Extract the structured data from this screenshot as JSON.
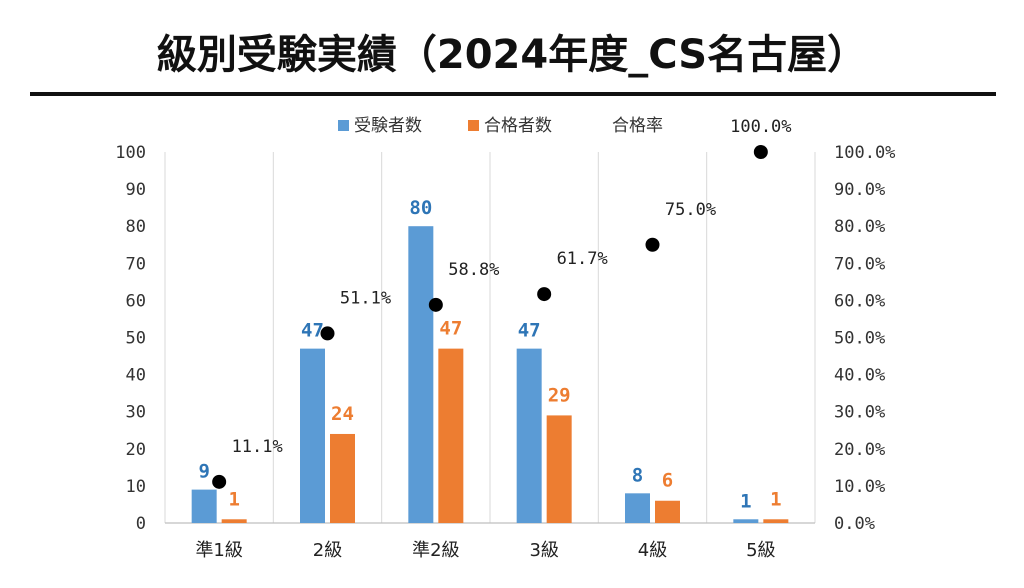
{
  "chart_data": {
    "type": "bar",
    "title": "級別受験実績（2024年度_CS名古屋）",
    "categories": [
      "準1級",
      "2級",
      "準2級",
      "3級",
      "4級",
      "5級"
    ],
    "series": [
      {
        "name": "受験者数",
        "kind": "bar",
        "axis": "left",
        "color": "#5b9bd5",
        "label_color": "#2e75b6",
        "values": [
          9,
          47,
          80,
          47,
          8,
          1
        ]
      },
      {
        "name": "合格者数",
        "kind": "bar",
        "axis": "left",
        "color": "#ed7d31",
        "label_color": "#ed7d31",
        "values": [
          1,
          24,
          47,
          29,
          6,
          1
        ]
      },
      {
        "name": "合格率",
        "kind": "scatter",
        "axis": "right",
        "color": "#000000",
        "values": [
          11.1,
          51.1,
          58.8,
          61.7,
          75.0,
          100.0
        ],
        "labels": [
          "11.1%",
          "51.1%",
          "58.8%",
          "61.7%",
          "75.0%",
          "100.0%"
        ]
      }
    ],
    "ylim": [
      0,
      100
    ],
    "yticks": [
      "0",
      "10",
      "20",
      "30",
      "40",
      "50",
      "60",
      "70",
      "80",
      "90",
      "100"
    ],
    "y2lim": [
      0,
      100
    ],
    "y2ticks": [
      "0.0%",
      "10.0%",
      "20.0%",
      "30.0%",
      "40.0%",
      "50.0%",
      "60.0%",
      "70.0%",
      "80.0%",
      "90.0%",
      "100.0%"
    ],
    "legend_position": "top",
    "grid": "vertical category separators"
  }
}
